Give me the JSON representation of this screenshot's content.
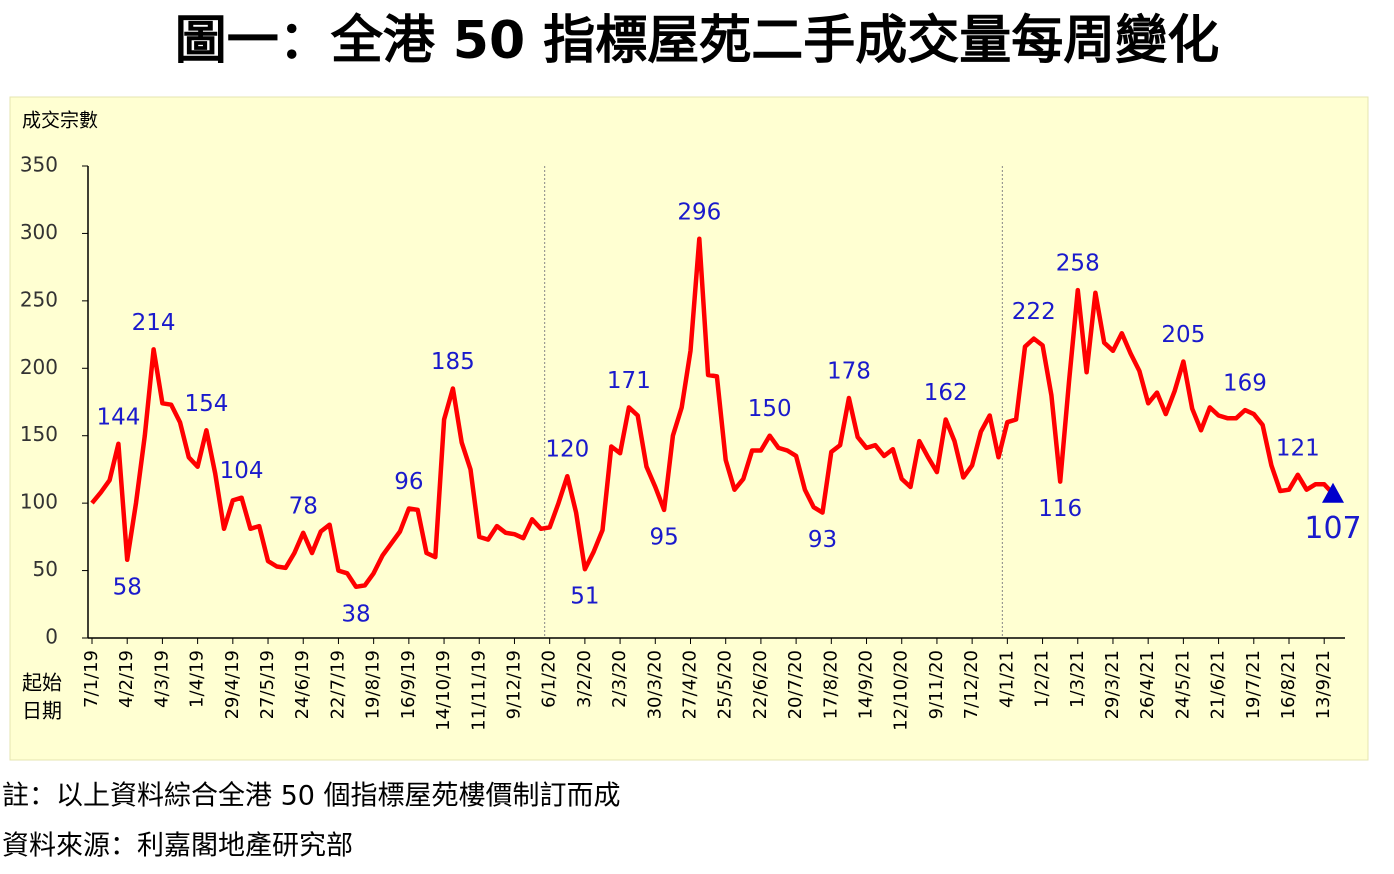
{
  "chart_data": {
    "type": "line",
    "title": "圖一：全港 50 指標屋苑二手成交量每周變化",
    "ylabel": "成交宗數",
    "xlabel": [
      "起始",
      "日期"
    ],
    "notes": [
      "註：以上資料綜合全港 50 個指標屋苑樓價制訂而成",
      "資料來源：利嘉閣地產研究部"
    ],
    "categories": [
      "7/1/19",
      null,
      null,
      null,
      "4/2/19",
      null,
      null,
      null,
      "4/3/19",
      null,
      null,
      null,
      "1/4/19",
      null,
      null,
      null,
      "29/4/19",
      null,
      null,
      null,
      "27/5/19",
      null,
      null,
      null,
      "24/6/19",
      null,
      null,
      null,
      "22/7/19",
      null,
      null,
      null,
      "19/8/19",
      null,
      null,
      null,
      "16/9/19",
      null,
      null,
      null,
      "14/10/19",
      null,
      null,
      null,
      "11/11/19",
      null,
      null,
      null,
      "9/12/19",
      null,
      null,
      null,
      "6/1/20",
      null,
      null,
      null,
      "3/2/20",
      null,
      null,
      null,
      "2/3/20",
      null,
      null,
      null,
      "30/3/20",
      null,
      null,
      null,
      "27/4/20",
      null,
      null,
      null,
      "25/5/20",
      null,
      null,
      null,
      "22/6/20",
      null,
      null,
      null,
      "20/7/20",
      null,
      null,
      null,
      "17/8/20",
      null,
      null,
      null,
      "14/9/20",
      null,
      null,
      null,
      "12/10/20",
      null,
      null,
      null,
      "9/11/20",
      null,
      null,
      null,
      "7/12/20",
      null,
      null,
      null,
      "4/1/21",
      null,
      null,
      null,
      "1/2/21",
      null,
      null,
      null,
      "1/3/21",
      null,
      null,
      null,
      "29/3/21",
      null,
      null,
      null,
      "26/4/21",
      null,
      null,
      null,
      "24/5/21",
      null,
      null,
      null,
      "21/6/21",
      null,
      null,
      null,
      "19/7/21",
      null,
      null,
      null,
      "16/8/21",
      null,
      null,
      null,
      "13/9/21",
      null
    ],
    "values": [
      100,
      108,
      117,
      144,
      58,
      100,
      150,
      214,
      174,
      173,
      160,
      134,
      127,
      154,
      122,
      81,
      102,
      104,
      81,
      83,
      57,
      53,
      52,
      63,
      78,
      63,
      79,
      84,
      50,
      48,
      38,
      39,
      48,
      61,
      70,
      79,
      96,
      95,
      63,
      60,
      162,
      185,
      145,
      125,
      75,
      73,
      83,
      78,
      77,
      74,
      88,
      81,
      82,
      100,
      120,
      93,
      51,
      64,
      80,
      142,
      137,
      171,
      165,
      127,
      112,
      95,
      150,
      171,
      213,
      296,
      195,
      194,
      132,
      110,
      118,
      139,
      139,
      150,
      141,
      139,
      135,
      110,
      97,
      93,
      138,
      143,
      178,
      149,
      141,
      143,
      135,
      140,
      118,
      112,
      146,
      134,
      123,
      162,
      146,
      119,
      128,
      153,
      165,
      134,
      160,
      162,
      216,
      222,
      217,
      180,
      116,
      190,
      258,
      197,
      256,
      219,
      213,
      226,
      211,
      198,
      174,
      182,
      166,
      183,
      205,
      170,
      154,
      171,
      165,
      163,
      163,
      169,
      166,
      158,
      128,
      109,
      110,
      121,
      110,
      114,
      114,
      107
    ],
    "value_labels": [
      null,
      null,
      null,
      "144",
      "58",
      null,
      null,
      "214",
      null,
      null,
      null,
      null,
      null,
      "154",
      null,
      null,
      null,
      "104",
      null,
      null,
      null,
      null,
      null,
      null,
      "78",
      null,
      null,
      null,
      null,
      null,
      "38",
      null,
      null,
      null,
      null,
      null,
      "96",
      null,
      null,
      null,
      null,
      "185",
      null,
      null,
      null,
      null,
      null,
      null,
      null,
      null,
      null,
      null,
      null,
      null,
      "120",
      null,
      "51",
      null,
      null,
      null,
      null,
      "171",
      null,
      null,
      null,
      "95",
      null,
      null,
      null,
      "296",
      null,
      null,
      null,
      null,
      null,
      null,
      null,
      "150",
      null,
      null,
      null,
      null,
      null,
      "93",
      null,
      null,
      "178",
      null,
      null,
      null,
      null,
      null,
      null,
      null,
      null,
      null,
      null,
      "162",
      null,
      null,
      null,
      null,
      null,
      null,
      null,
      null,
      null,
      "222",
      null,
      null,
      "116",
      null,
      "258",
      null,
      null,
      null,
      null,
      null,
      null,
      null,
      null,
      null,
      null,
      null,
      "205",
      null,
      null,
      null,
      null,
      null,
      null,
      "169",
      null,
      null,
      null,
      null,
      null,
      "121",
      null,
      null,
      null,
      "107"
    ],
    "color": "#ff0000",
    "label_color": "#1a1acc",
    "last_marker_color": "#0000cc",
    "ylim": [
      0,
      350
    ],
    "yticks": [
      0,
      50,
      100,
      150,
      200,
      250,
      300,
      350
    ],
    "vlines": [
      52,
      104
    ],
    "background": "#ffffd2"
  }
}
